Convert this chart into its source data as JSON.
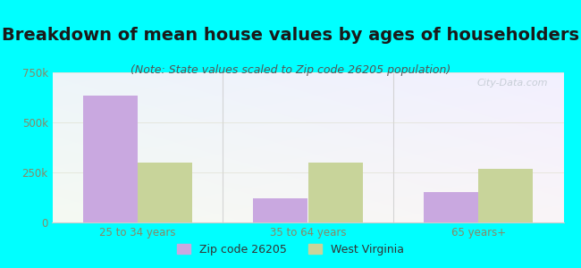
{
  "title": "Breakdown of mean house values by ages of householders",
  "subtitle": "(Note: State values scaled to Zip code 26205 population)",
  "categories": [
    "25 to 34 years",
    "35 to 64 years",
    "65 years+"
  ],
  "zip_values": [
    635000,
    120000,
    150000
  ],
  "state_values": [
    300000,
    300000,
    270000
  ],
  "ylim": [
    0,
    750000
  ],
  "yticks": [
    0,
    250000,
    500000,
    750000
  ],
  "ytick_labels": [
    "0",
    "250k",
    "500k",
    "750k"
  ],
  "zip_color": "#c9a8e0",
  "state_color": "#c8d49a",
  "background_color": "#00ffff",
  "legend_zip": "Zip code 26205",
  "legend_state": "West Virginia",
  "watermark": "City-Data.com",
  "bar_width": 0.32,
  "title_fontsize": 14,
  "subtitle_fontsize": 9,
  "tick_label_color": "#888866"
}
